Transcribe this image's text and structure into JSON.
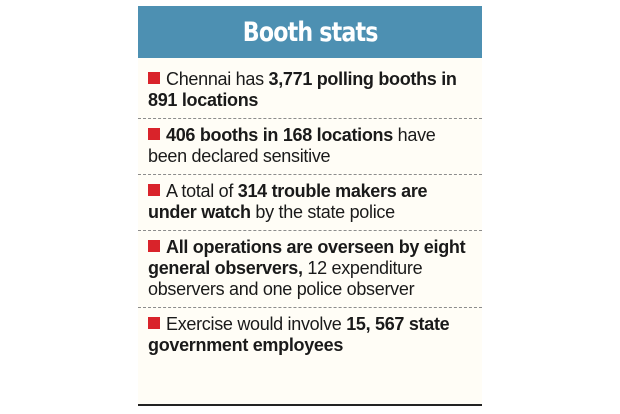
{
  "title": "Booth stats",
  "accent_color": "#4d90b2",
  "bullet_color": "#d9232a",
  "items": [
    {
      "segments": [
        {
          "text": "Chennai has ",
          "bold": false
        },
        {
          "text": "3,771 polling booths in 891 locations",
          "bold": true
        }
      ]
    },
    {
      "segments": [
        {
          "text": "406 booths in 168 locations",
          "bold": true
        },
        {
          "text": " have been declared sensitive",
          "bold": false
        }
      ]
    },
    {
      "segments": [
        {
          "text": "A total of ",
          "bold": false
        },
        {
          "text": "314 trouble makers are under watch",
          "bold": true
        },
        {
          "text": " by the state police",
          "bold": false
        }
      ]
    },
    {
      "segments": [
        {
          "text": "All operations are overseen by eight general observers,",
          "bold": true
        },
        {
          "text": " 12 expenditure observers and one police observer",
          "bold": false
        }
      ]
    },
    {
      "segments": [
        {
          "text": "Exercise would involve ",
          "bold": false
        },
        {
          "text": "15, 567 state government employees",
          "bold": true
        }
      ]
    }
  ]
}
